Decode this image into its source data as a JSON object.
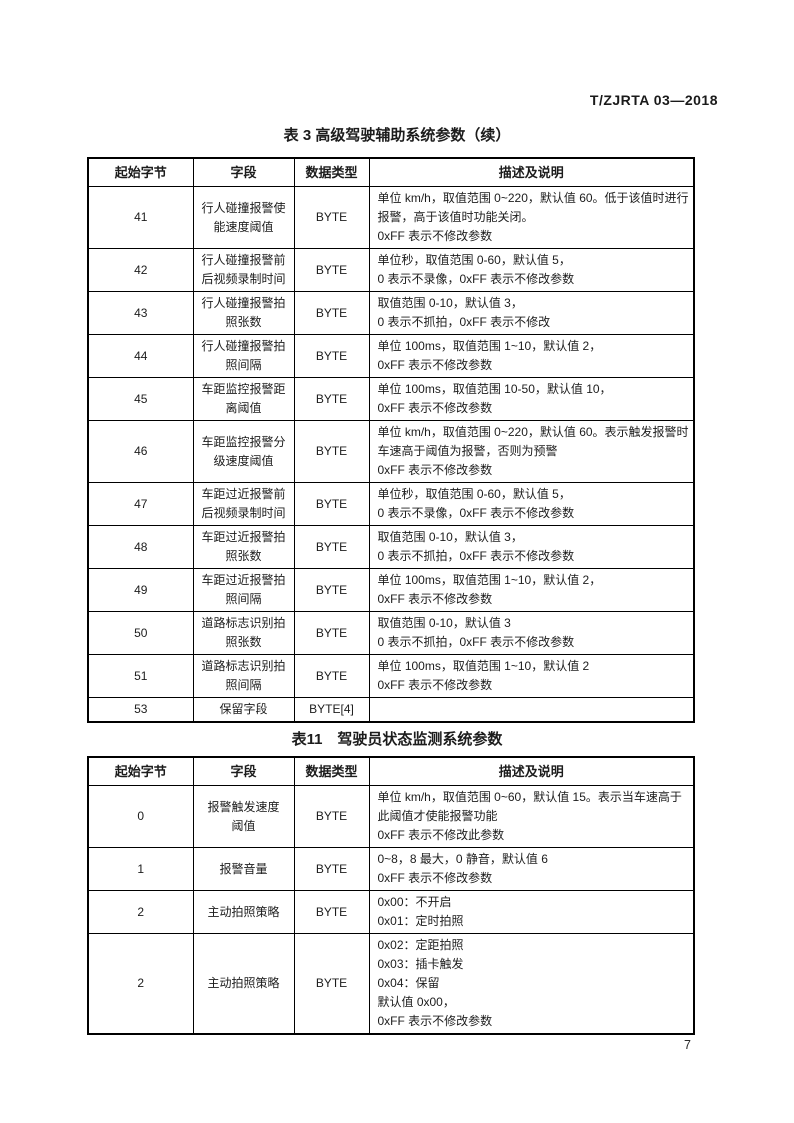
{
  "page": {
    "doc_code": "T/ZJRTA 03—2018",
    "page_number": "7"
  },
  "colors": {
    "ink": "#1c1c1c",
    "table_border": "#000000",
    "background": "#ffffff"
  },
  "table3": {
    "title": "表 3 高级驾驶辅助系统参数（续）",
    "headers": [
      "起始字节",
      "字段",
      "数据类型",
      "描述及说明"
    ],
    "rows": [
      {
        "start_byte": "41",
        "field": "行人碰撞报警使能速度阈值",
        "data_type": "BYTE",
        "description": "单位 km/h，取值范围 0~220，默认值 60。低于该值时进行报警，高于该值时功能关闭。\n0xFF 表示不修改参数"
      },
      {
        "start_byte": "42",
        "field": "行人碰撞报警前后视频录制时间",
        "data_type": "BYTE",
        "description": "单位秒，取值范围 0-60，默认值 5，\n0 表示不录像，0xFF 表示不修改参数"
      },
      {
        "start_byte": "43",
        "field": "行人碰撞报警拍照张数",
        "data_type": "BYTE",
        "description": "取值范围 0-10，默认值 3，\n0 表示不抓拍，0xFF 表示不修改"
      },
      {
        "start_byte": "44",
        "field": "行人碰撞报警拍照间隔",
        "data_type": "BYTE",
        "description": "单位 100ms，取值范围 1~10，默认值 2，\n0xFF 表示不修改参数"
      },
      {
        "start_byte": "45",
        "field": "车距监控报警距离阈值",
        "data_type": "BYTE",
        "description": "单位 100ms，取值范围 10-50，默认值 10，\n0xFF 表示不修改参数"
      },
      {
        "start_byte": "46",
        "field": "车距监控报警分级速度阈值",
        "data_type": "BYTE",
        "description": "单位 km/h，取值范围 0~220，默认值 60。表示触发报警时车速高于阈值为报警，否则为预警\n0xFF 表示不修改参数"
      },
      {
        "start_byte": "47",
        "field": "车距过近报警前后视频录制时间",
        "data_type": "BYTE",
        "description": "单位秒，取值范围 0-60，默认值 5，\n0 表示不录像，0xFF 表示不修改参数"
      },
      {
        "start_byte": "48",
        "field": "车距过近报警拍照张数",
        "data_type": "BYTE",
        "description": "取值范围 0-10，默认值 3，\n0 表示不抓拍，0xFF 表示不修改参数"
      },
      {
        "start_byte": "49",
        "field": "车距过近报警拍照间隔",
        "data_type": "BYTE",
        "description": "单位 100ms，取值范围 1~10，默认值 2，\n0xFF 表示不修改参数"
      },
      {
        "start_byte": "50",
        "field": "道路标志识别拍照张数",
        "data_type": "BYTE",
        "description": "取值范围 0-10，默认值 3\n0 表示不抓拍，0xFF 表示不修改参数"
      },
      {
        "start_byte": "51",
        "field": "道路标志识别拍照间隔",
        "data_type": "BYTE",
        "description": "单位 100ms，取值范围 1~10，默认值 2\n0xFF 表示不修改参数"
      },
      {
        "start_byte": "53",
        "field": "保留字段",
        "data_type": "BYTE[4]",
        "description": ""
      }
    ]
  },
  "table11": {
    "title": "表11　驾驶员状态监测系统参数",
    "headers": [
      "起始字节",
      "字段",
      "数据类型",
      "描述及说明"
    ],
    "rows": [
      {
        "start_byte": "0",
        "field": "报警触发速度\n阈值",
        "data_type": "BYTE",
        "description": "单位 km/h，取值范围 0~60，默认值 15。表示当车速高于此阈值才使能报警功能\n0xFF 表示不修改此参数"
      },
      {
        "start_byte": "1",
        "field": "报警音量",
        "data_type": "BYTE",
        "description": "0~8，8 最大，0 静音，默认值 6\n0xFF 表示不修改参数"
      },
      {
        "start_byte": "2",
        "field": "主动拍照策略",
        "data_type": "BYTE",
        "description": "0x00：不开启\n0x01：定时拍照"
      },
      {
        "start_byte": "2",
        "field": "主动拍照策略",
        "data_type": "BYTE",
        "description": "0x02：定距拍照\n0x03：插卡触发\n0x04：保留\n默认值 0x00，\n0xFF 表示不修改参数"
      }
    ]
  }
}
